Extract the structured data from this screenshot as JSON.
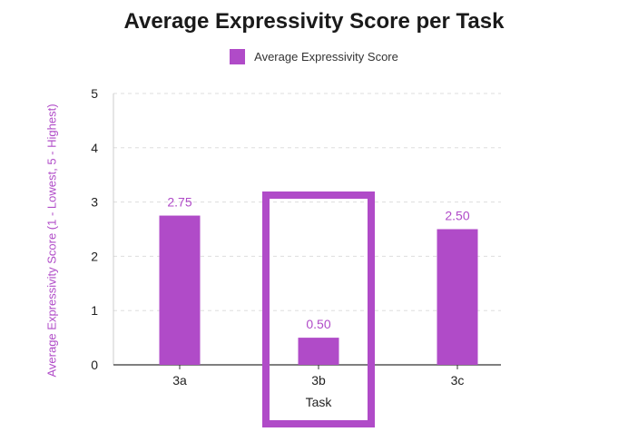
{
  "colors": {
    "bar": "#b04bc8",
    "highlight": "#b04bc8",
    "label": "#b04bc8",
    "ylabel": "#b04bc8",
    "grid": "#dddddd",
    "axis": "#333333"
  },
  "chart_data": {
    "type": "bar",
    "title": "Average Expressivity Score per Task",
    "xlabel": "Task",
    "ylabel": "Average Expressivity Score (1 - Lowest, 5 - Highest)",
    "categories": [
      "3a",
      "3b",
      "3c"
    ],
    "series": [
      {
        "name": "Average Expressivity Score",
        "values": [
          2.75,
          0.5,
          2.5
        ],
        "data_labels": [
          "2.75",
          "0.50",
          "2.50"
        ]
      }
    ],
    "ylim": [
      0,
      5
    ],
    "yticks": [
      "0",
      "1",
      "2",
      "3",
      "4",
      "5"
    ],
    "grid": true,
    "grid_style": "dashed",
    "legend_position": "top-center",
    "highlighted_category": "3b"
  }
}
